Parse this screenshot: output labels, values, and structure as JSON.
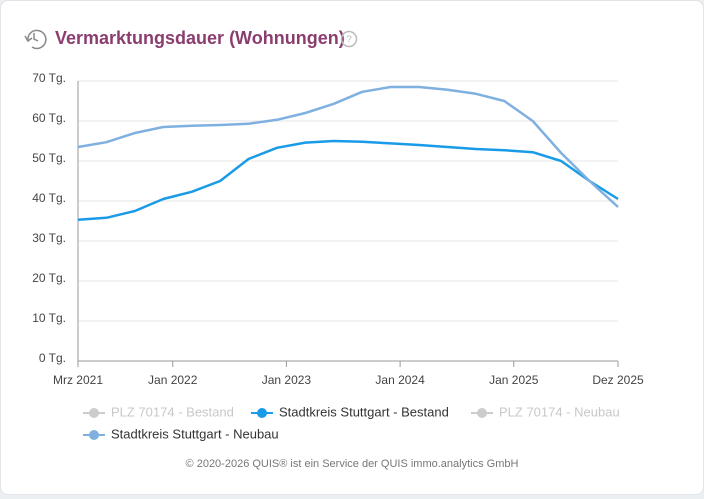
{
  "chart_data": {
    "type": "line",
    "title": "Vermarktungsdauer (Wohnungen)",
    "x": [
      "2021-03",
      "2021-06",
      "2021-09",
      "2021-12",
      "2022-03",
      "2022-06",
      "2022-09",
      "2022-12",
      "2023-03",
      "2023-06",
      "2023-09",
      "2023-12",
      "2024-03",
      "2024-06",
      "2024-09",
      "2024-12",
      "2025-03",
      "2025-06",
      "2025-09",
      "2025-12"
    ],
    "series": [
      {
        "name": "PLZ 70174 - Bestand",
        "color": "#cccccc",
        "hidden": true,
        "values": [
          null,
          null,
          null,
          null,
          null,
          null,
          null,
          null,
          null,
          null,
          null,
          null,
          null,
          null,
          null,
          null,
          null,
          null,
          null,
          null
        ]
      },
      {
        "name": "Stadtkreis Stuttgart - Bestand",
        "color": "#1a9be8",
        "hidden": false,
        "values": [
          35.3,
          35.8,
          37.5,
          40.5,
          42.3,
          45,
          50.5,
          53.3,
          54.6,
          55,
          54.8,
          54.4,
          54,
          53.5,
          53,
          52.7,
          52.2,
          50,
          45,
          40.5
        ]
      },
      {
        "name": "PLZ 70174 - Neubau",
        "color": "#cccccc",
        "hidden": true,
        "values": [
          null,
          null,
          null,
          null,
          null,
          null,
          null,
          null,
          null,
          null,
          null,
          null,
          null,
          null,
          null,
          null,
          null,
          null,
          null,
          null
        ]
      },
      {
        "name": "Stadtkreis Stuttgart - Neubau",
        "color": "#7fb0e0",
        "hidden": false,
        "values": [
          53.5,
          54.7,
          57,
          58.5,
          58.8,
          59,
          59.3,
          60.3,
          62,
          64.3,
          67.3,
          68.5,
          68.5,
          67.8,
          66.8,
          65,
          60,
          52,
          45,
          38.5
        ]
      }
    ],
    "xlim": [
      "2021-03",
      "2025-12"
    ],
    "xticks": [
      {
        "value": "2021-03",
        "label": "Mrz 2021"
      },
      {
        "value": "2022-01",
        "label": "Jan 2022"
      },
      {
        "value": "2023-01",
        "label": "Jan 2023"
      },
      {
        "value": "2024-01",
        "label": "Jan 2024"
      },
      {
        "value": "2025-01",
        "label": "Jan 2025"
      },
      {
        "value": "2025-12",
        "label": "Dez 2025"
      }
    ],
    "ylim": [
      0,
      70
    ],
    "yticks": [
      {
        "value": 0,
        "label": "0 Tg."
      },
      {
        "value": 10,
        "label": "10 Tg."
      },
      {
        "value": 20,
        "label": "20 Tg."
      },
      {
        "value": 30,
        "label": "30 Tg."
      },
      {
        "value": 40,
        "label": "40 Tg."
      },
      {
        "value": 50,
        "label": "50 Tg."
      },
      {
        "value": 60,
        "label": "60 Tg."
      },
      {
        "value": 70,
        "label": "70 Tg."
      }
    ],
    "grid": true,
    "footer": "© 2020-2026 QUIS® ist ein Service der QUIS immo.analytics GmbH"
  }
}
